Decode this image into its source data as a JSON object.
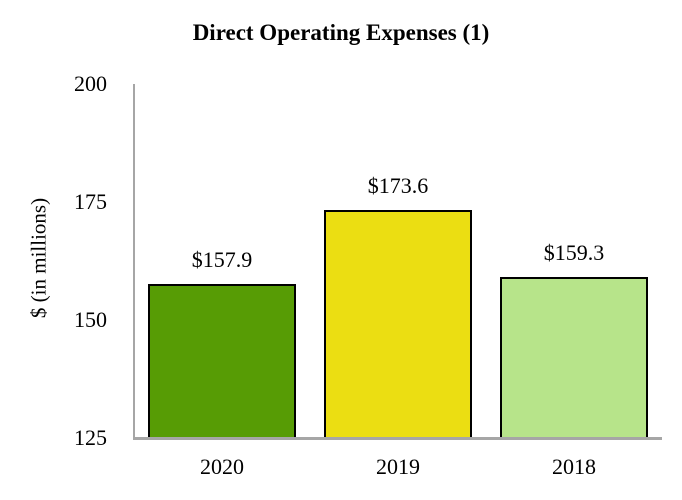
{
  "chart": {
    "title": "Direct Operating Expenses (1)",
    "y_axis_title": "$ (in millions)",
    "colors": {
      "background": "#FFFFFF",
      "axis_line": "#A6A6A6",
      "bar_border": "#000000",
      "text": "#000000"
    }
  },
  "chart_data": {
    "type": "bar",
    "title": "Direct Operating Expenses (1)",
    "xlabel": "",
    "ylabel": "$ (in millions)",
    "categories": [
      "2020",
      "2019",
      "2018"
    ],
    "values": [
      157.9,
      173.6,
      159.3
    ],
    "data_labels": [
      "$157.9",
      "$173.6",
      "$159.3"
    ],
    "bar_colors": [
      "#579C05",
      "#EBDE12",
      "#B7E48A"
    ],
    "ylim": [
      125,
      200
    ],
    "y_ticks": [
      125,
      150,
      175,
      200
    ],
    "grid": false,
    "legend": false
  }
}
